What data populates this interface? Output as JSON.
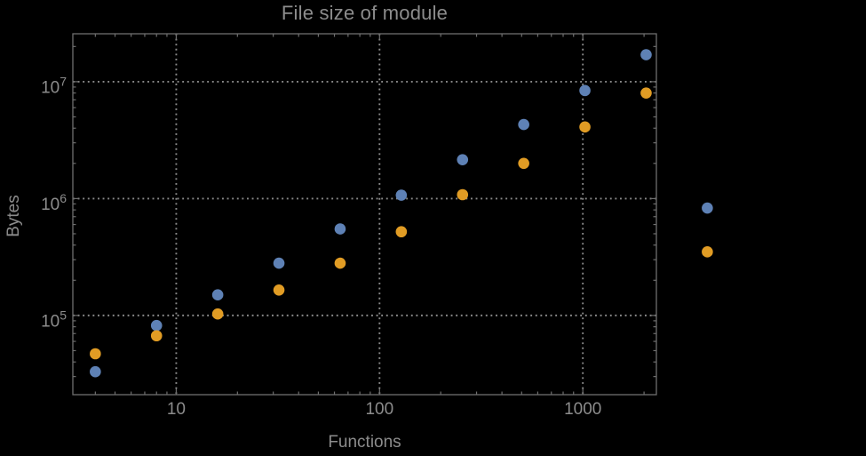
{
  "colors": {
    "background": "#000000",
    "frame": "#6e6e6e",
    "grid": "#8a8a8a",
    "text": "#8c8c8c",
    "series_blue": "#5E81B5",
    "series_orange": "#E19C24"
  },
  "chart_data": {
    "type": "scatter",
    "title": "File size of module",
    "xlabel": "Functions",
    "ylabel": "Bytes",
    "x_scale": "log",
    "y_scale": "log",
    "xlim": [
      3.1,
      2300
    ],
    "ylim": [
      21000,
      25700000
    ],
    "grid": true,
    "legend": "none",
    "marker_radius": 6.3,
    "clip": false,
    "x": [
      4,
      8,
      16,
      32,
      64,
      128,
      256,
      512,
      1024,
      2048,
      4096
    ],
    "series": [
      {
        "name": "blue",
        "color": "#5E81B5",
        "values": [
          33000,
          82000,
          150000,
          280000,
          550000,
          1070000,
          2150000,
          4300000,
          8400000,
          17000000,
          830000
        ]
      },
      {
        "name": "orange",
        "color": "#E19C24",
        "values": [
          47000,
          67000,
          103000,
          165000,
          280000,
          520000,
          1080000,
          2000000,
          4100000,
          8000000,
          350000
        ]
      }
    ],
    "x_ticks": [
      {
        "value": 10,
        "label": "10"
      },
      {
        "value": 100,
        "label": "100"
      },
      {
        "value": 1000,
        "label": "1000"
      }
    ],
    "y_ticks": [
      {
        "value": 100000,
        "mantissa": "10",
        "exponent": "5"
      },
      {
        "value": 1000000,
        "mantissa": "10",
        "exponent": "6"
      },
      {
        "value": 10000000,
        "mantissa": "10",
        "exponent": "7"
      }
    ]
  }
}
